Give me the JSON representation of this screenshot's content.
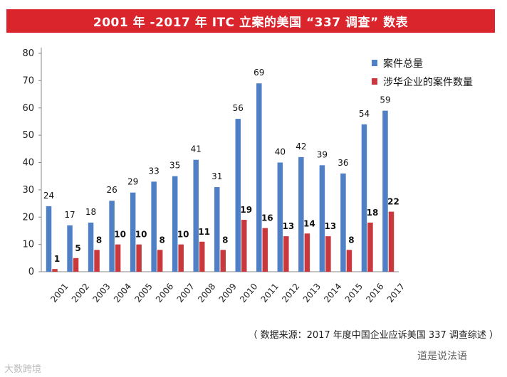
{
  "title": "2001 年 -2017 年 ITC 立案的美国 “337 调查” 数表",
  "source": "（ 数据来源：2017 年度中国企业应诉美国 337 调查综述 ）",
  "watermark_left": "大数跨境",
  "watermark_right": "道是说法语",
  "colors": {
    "title_bg": "#d9252b",
    "series1": "#4f7fc4",
    "series2": "#c8383d"
  },
  "chart_data": {
    "type": "bar",
    "title": "2001 年 -2017 年 ITC 立案的美国 “337 调查” 数表",
    "xlabel": "",
    "ylabel": "",
    "ylim": [
      0,
      80
    ],
    "yticks": [
      0,
      10,
      20,
      30,
      40,
      50,
      60,
      70,
      80
    ],
    "categories": [
      "2001",
      "2002",
      "2003",
      "2004",
      "2005",
      "2006",
      "2007",
      "2008",
      "2009",
      "2010",
      "2011",
      "2012",
      "2013",
      "2014",
      "2015",
      "2016",
      "2017"
    ],
    "series": [
      {
        "name": "案件总量",
        "values": [
          24,
          17,
          18,
          26,
          29,
          33,
          35,
          41,
          31,
          56,
          69,
          40,
          42,
          39,
          36,
          54,
          59
        ]
      },
      {
        "name": "涉华企业的案件数量",
        "values": [
          1,
          5,
          8,
          10,
          10,
          8,
          10,
          11,
          8,
          19,
          16,
          13,
          14,
          13,
          8,
          18,
          22
        ]
      }
    ],
    "legend": "top-right"
  }
}
